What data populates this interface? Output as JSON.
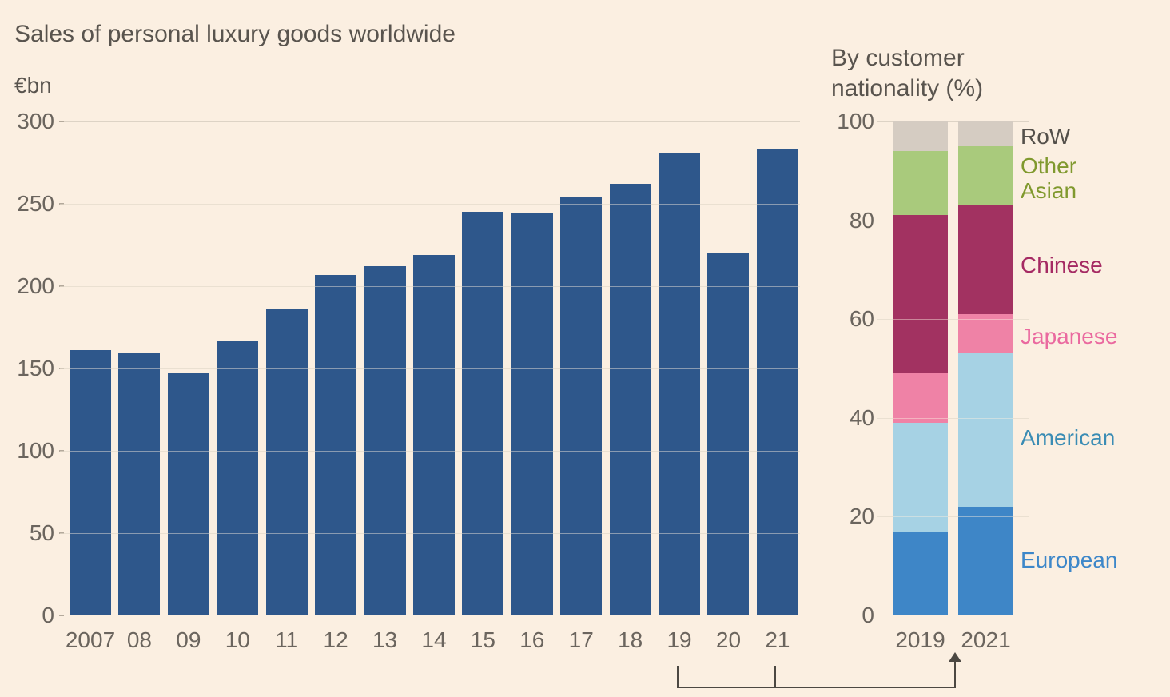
{
  "page": {
    "title": "Sales of personal luxury goods worldwide"
  },
  "colors": {
    "background": "#fbefe1",
    "bar_navy": "#2e578b",
    "grid": "#ddd3c5",
    "tick": "#b3a99b",
    "title_text": "#59544e",
    "axis_text": "#6b655e",
    "annotation": "#4c4842"
  },
  "chart_data": [
    {
      "type": "bar",
      "title": "Sales of personal luxury goods worldwide",
      "ylabel": "€bn",
      "xlabel": "",
      "categories": [
        "2007",
        "08",
        "09",
        "10",
        "11",
        "12",
        "13",
        "14",
        "15",
        "16",
        "17",
        "18",
        "19",
        "20",
        "21"
      ],
      "values": [
        161,
        159,
        147,
        167,
        186,
        207,
        212,
        219,
        245,
        244,
        254,
        262,
        281,
        220,
        283
      ],
      "ylim": [
        0,
        300
      ],
      "yticks": [
        0,
        50,
        100,
        150,
        200,
        250,
        300
      ],
      "bar_color": "#2e578b",
      "grid": true,
      "legend_position": "none"
    },
    {
      "type": "stacked-bar",
      "title": "By customer nationality (%)",
      "categories": [
        "2019",
        "2021"
      ],
      "series": [
        {
          "name": "European",
          "values": [
            17,
            22
          ],
          "color": "#3e86c7",
          "label_color": "#3d87c9"
        },
        {
          "name": "American",
          "values": [
            22,
            31
          ],
          "color": "#a6d2e4",
          "label_color": "#3a8cb4"
        },
        {
          "name": "Japanese",
          "values": [
            10,
            8
          ],
          "color": "#ef82a6",
          "label_color": "#ea699f"
        },
        {
          "name": "Chinese",
          "values": [
            32,
            22
          ],
          "color": "#a23261",
          "label_color": "#a52a63"
        },
        {
          "name": "Other Asian",
          "values": [
            13,
            12
          ],
          "color": "#a9ca7c",
          "label_color": "#80992e"
        },
        {
          "name": "RoW",
          "values": [
            6,
            5
          ],
          "color": "#d5ccc2",
          "label_color": "#54504a"
        }
      ],
      "ylim": [
        0,
        100
      ],
      "yticks": [
        0,
        20,
        40,
        60,
        80,
        100
      ],
      "grid": true,
      "legend_position": "right"
    }
  ]
}
